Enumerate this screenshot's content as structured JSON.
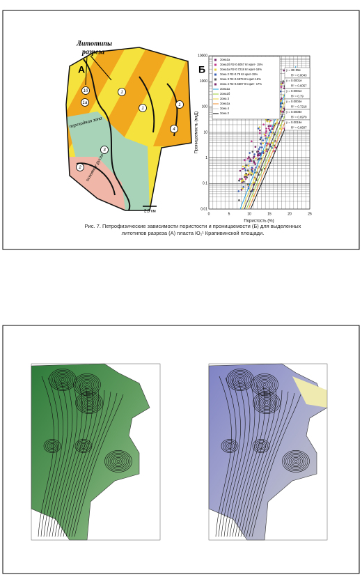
{
  "figure_top": {
    "map": {
      "panel_label": "А",
      "title_lines": [
        "Литотипы",
        "разреза"
      ],
      "zone_labels": [
        "переходная зона",
        "основное русло"
      ],
      "scale": "2,5 км",
      "well_labels": [
        "1б",
        "1а",
        "1",
        "1",
        "1",
        "4",
        "3",
        "2"
      ]
    },
    "chart": {
      "panel_label": "Б",
      "y_label": "Проницаемость (мкД)",
      "x_label": "Пористость (%)",
      "y_ticks": [
        "10000",
        "1000",
        "100",
        "10",
        "1",
        "0.1",
        "0.01"
      ],
      "x_ticks": [
        "0",
        "5",
        "10",
        "15",
        "20",
        "25"
      ],
      "legend": [
        "Зона1а",
        "Зона1б   R2-0.6057 Кп крит- 15%",
        "Зона1а   R2-0.7218 Кп крит-16%",
        "Зона 2   R2-0.79 Кп крит-15%",
        "Зона 3   R2-0.6979 Кп крит-16%",
        "Зона 4   R2-0.6607 Кп крит- 17%",
        "Зона1а",
        "Зона1б",
        "Зона 3",
        "Зона1а",
        "Зона 4",
        "Зона 2"
      ],
      "equations": [
        "y = 3E-05e",
        "R² = 0.8043",
        "y = 0.0001e",
        "R² = 0.6057",
        "y = 0.0001e",
        "R² = 0.79",
        "y = 0.0004e",
        "R² = 0.7218",
        "y = 0.0008e",
        "R² = 0.6979",
        "y = 0.0019e",
        "R² = 0.6607"
      ]
    },
    "caption": "Рис. 7. Петрофизические зависимости пористости и проницаемости (Б) для выделенных литотипов разреза (А) пласта Ю₁¹ Крапивинской площади."
  }
}
